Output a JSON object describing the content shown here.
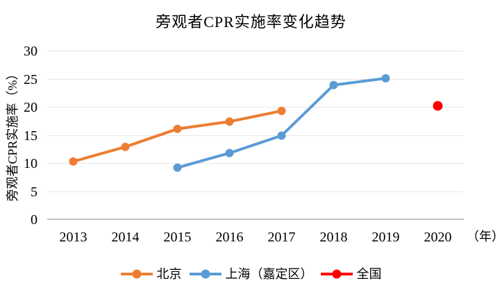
{
  "chart_data": {
    "type": "line",
    "title": "旁观者CPR实施率变化趋势",
    "ylabel": "旁观者CPR实施率（%）",
    "xlabel": "年",
    "x_axis_suffix": "（年）",
    "ylim": [
      0,
      30
    ],
    "yticks": [
      0,
      5,
      10,
      15,
      20,
      25,
      30
    ],
    "categories": [
      "2013",
      "2014",
      "2015",
      "2016",
      "2017",
      "2018",
      "2019",
      "2020"
    ],
    "grid": true,
    "legend_position": "bottom",
    "background_color": "#ffffff",
    "gridline_color": "#e7e7e7",
    "axis_line_color": "#bfbfbf",
    "series": [
      {
        "name": "北京",
        "type": "line",
        "color": "#ED7D31",
        "x": [
          "2013",
          "2014",
          "2015",
          "2016",
          "2017"
        ],
        "values": [
          10.4,
          13.0,
          16.2,
          17.5,
          19.4
        ]
      },
      {
        "name": "上海（嘉定区）",
        "type": "line",
        "color": "#5B9BD5",
        "x": [
          "2015",
          "2016",
          "2017",
          "2018",
          "2019"
        ],
        "values": [
          9.3,
          11.9,
          15.0,
          24.0,
          25.2
        ]
      },
      {
        "name": "全国",
        "type": "scatter",
        "color": "#FF0000",
        "x": [
          "2020"
        ],
        "values": [
          20.3
        ]
      }
    ]
  }
}
